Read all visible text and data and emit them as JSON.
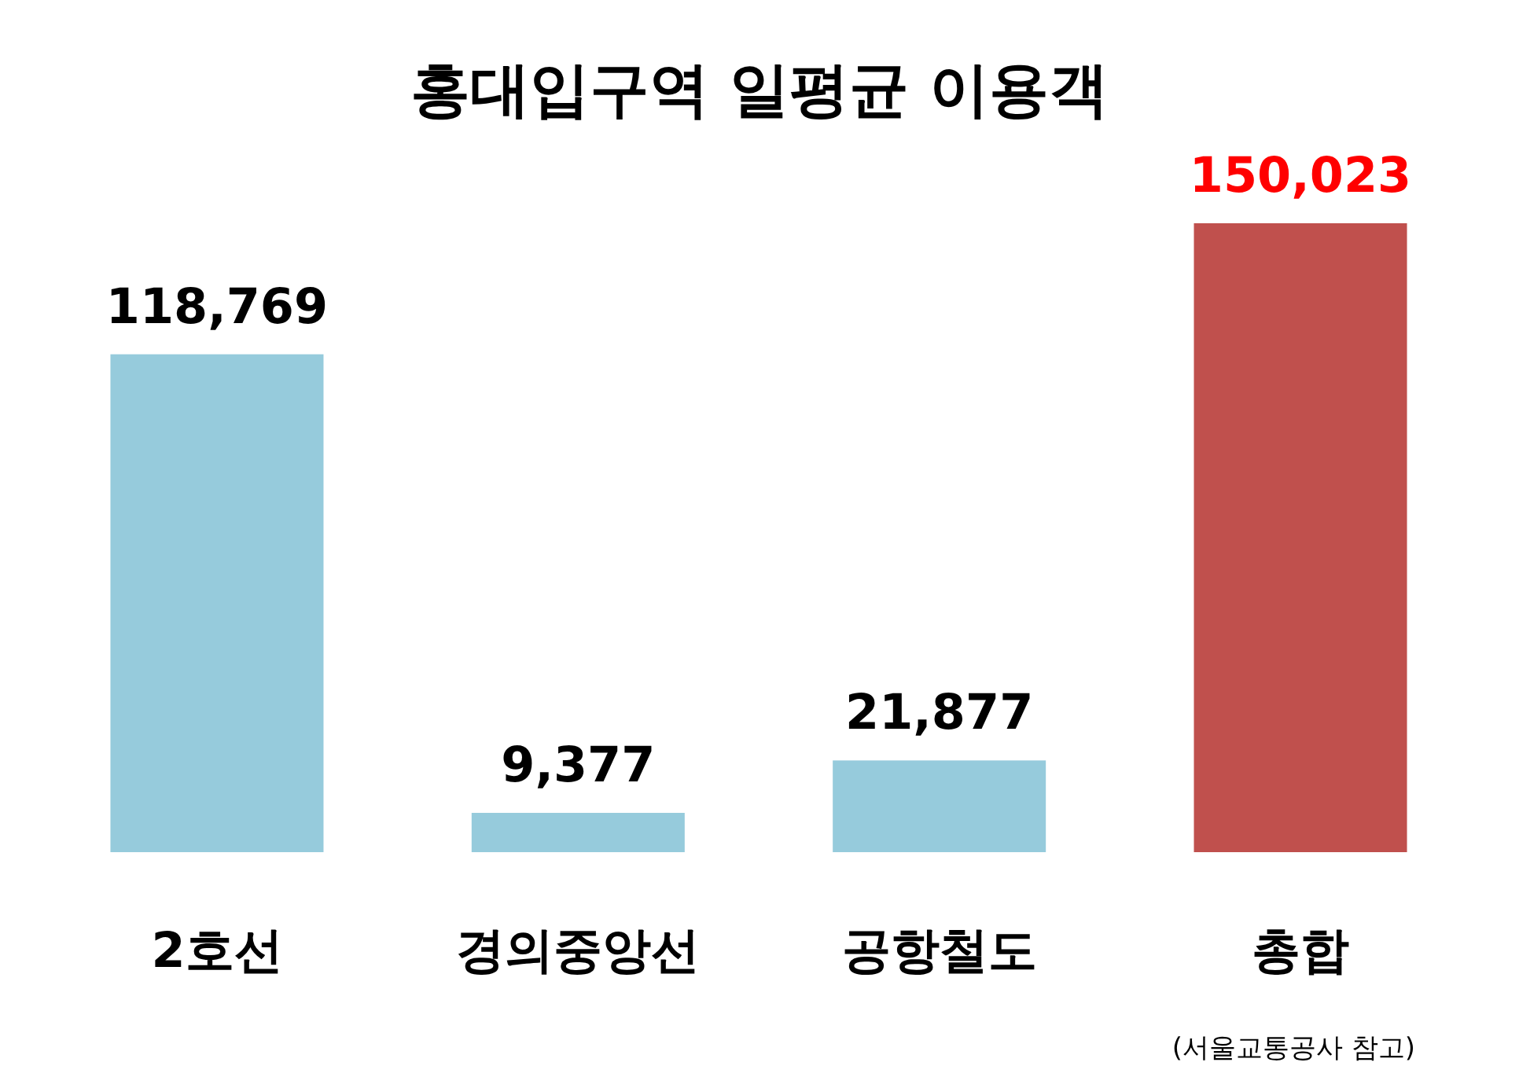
{
  "chart_data": {
    "type": "bar",
    "title": "홍대입구역 일평균 이용객",
    "categories": [
      "2호선",
      "경의중앙선",
      "공항철도",
      "총합"
    ],
    "values": [
      118769,
      9377,
      21877,
      150023
    ],
    "colors": [
      "#96cbdc",
      "#96cbdc",
      "#96cbdc",
      "#c0504d"
    ],
    "value_labels": [
      "118,769",
      "9,377",
      "21,877",
      "150,023"
    ],
    "annotations": [
      "(서울교통공사 참고)"
    ]
  }
}
